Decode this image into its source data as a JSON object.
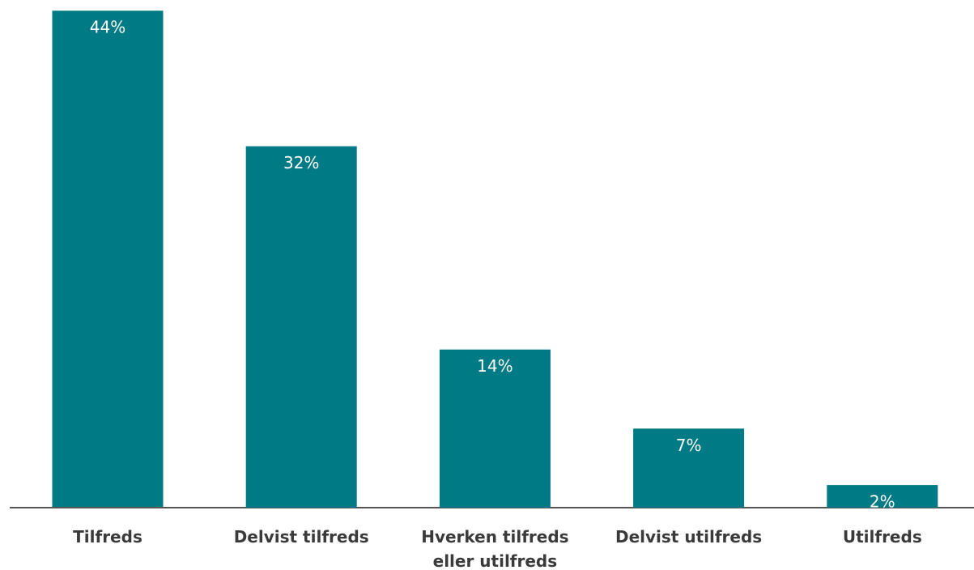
{
  "chart_data": {
    "type": "bar",
    "categories": [
      "Tilfreds",
      "Delvist tilfreds",
      "Hverken tilfreds eller utilfreds",
      "Delvist utilfreds",
      "Utilfreds"
    ],
    "values": [
      44,
      32,
      14,
      7,
      2
    ],
    "value_labels": [
      "44%",
      "32%",
      "14%",
      "7%",
      "2%"
    ],
    "color": "#007a84"
  }
}
